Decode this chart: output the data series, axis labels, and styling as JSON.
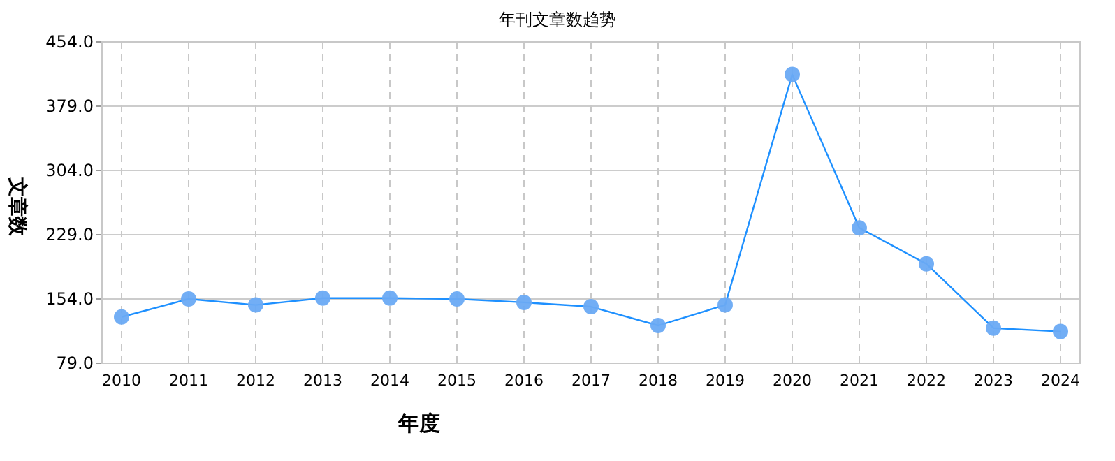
{
  "chart_data": {
    "type": "line",
    "title": "年刊文章数趋势",
    "xlabel": "年度",
    "ylabel": "文章数",
    "categories": [
      "2010",
      "2011",
      "2012",
      "2013",
      "2014",
      "2015",
      "2016",
      "2017",
      "2018",
      "2019",
      "2020",
      "2021",
      "2022",
      "2023",
      "2024"
    ],
    "series": [
      {
        "color": "#1e90ff",
        "values": [
          133,
          154,
          147,
          155,
          155,
          154,
          150,
          145,
          123,
          147,
          416,
          237,
          195,
          120,
          116
        ]
      }
    ],
    "ylim": [
      79,
      454
    ],
    "yticks": [
      {
        "value": 79,
        "label": "79.0"
      },
      {
        "value": 154,
        "label": "154.0"
      },
      {
        "value": 229,
        "label": "229.0"
      },
      {
        "value": 304,
        "label": "304.0"
      },
      {
        "value": 379,
        "label": "379.0"
      },
      {
        "value": 454,
        "label": "454.0"
      }
    ],
    "grid": true,
    "marker": "circle",
    "line_style": "solid"
  }
}
